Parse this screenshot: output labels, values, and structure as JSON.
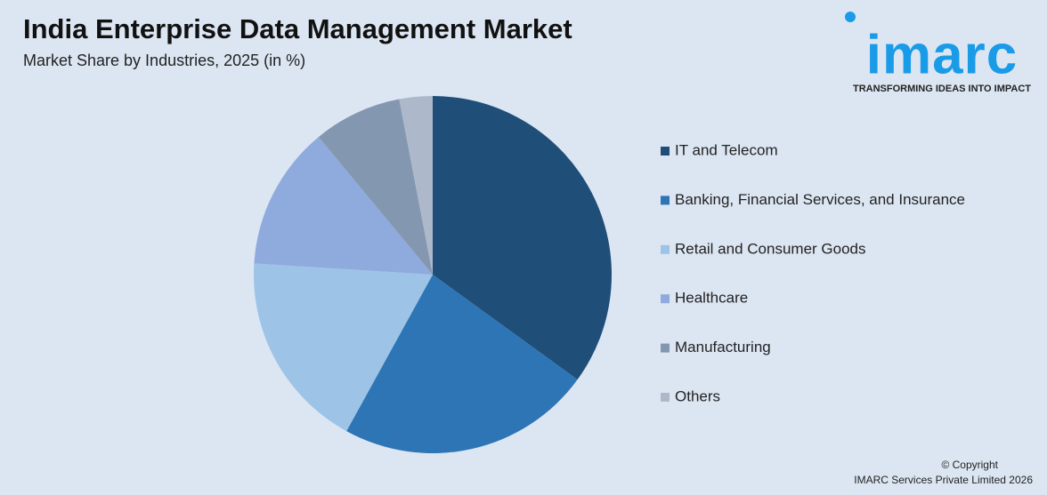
{
  "chart_data": {
    "type": "pie",
    "title": "India Enterprise Data Management Market",
    "subtitle": "Market Share by Industries, 2025 (in %)",
    "categories": [
      "IT and Telecom",
      "Banking, Financial Services, and Insurance",
      "Retail and Consumer Goods",
      "Healthcare",
      "Manufacturing",
      "Others"
    ],
    "values": [
      35,
      23,
      18,
      13,
      8,
      3
    ],
    "colors": [
      "#1f4e79",
      "#2e75b6",
      "#9dc3e6",
      "#8faadc",
      "#8497b0",
      "#adb9ca"
    ],
    "legend": "right"
  },
  "logo": {
    "name": "imarc",
    "tagline": "TRANSFORMING IDEAS INTO IMPACT"
  },
  "footer": {
    "copyright": "© Copyright",
    "owner": "IMARC Services Private Limited 2026"
  }
}
